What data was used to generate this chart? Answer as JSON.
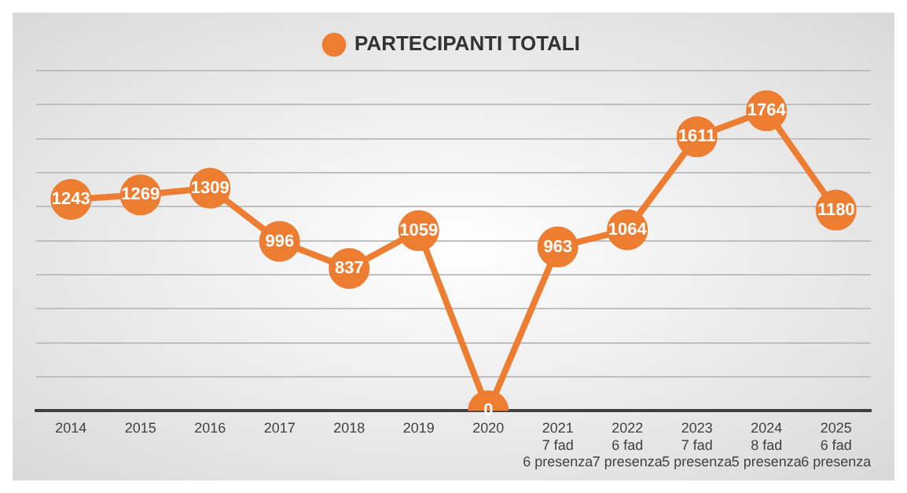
{
  "chart_data": {
    "type": "line",
    "categories": [
      "2014",
      "2015",
      "2016",
      "2017",
      "2018",
      "2019",
      "2020",
      "2021\n7 fad\n6 presenza",
      "2022\n6 fad\n7 presenza",
      "2023\n7 fad\n5 presenza",
      "2024\n8 fad\n5 presenza",
      "2025\n6 fad\n6 presenza"
    ],
    "series": [
      {
        "name": "PARTECIPANTI TOTALI",
        "color": "#ed7d31",
        "values": [
          1243,
          1269,
          1309,
          996,
          837,
          1059,
          0,
          963,
          1064,
          1611,
          1764,
          1180
        ]
      }
    ],
    "ylim": [
      0,
      2000
    ],
    "yticks": [
      {
        "value": 0,
        "label": null
      },
      {
        "value": 200,
        "label": null
      },
      {
        "value": 400,
        "label": null
      },
      {
        "value": 600,
        "label": null
      },
      {
        "value": 800,
        "label": null
      },
      {
        "value": 1000,
        "label": null
      },
      {
        "value": 1200,
        "label": null
      },
      {
        "value": 1400,
        "label": null
      },
      {
        "value": 1600,
        "label": null
      },
      {
        "value": 1800,
        "label": null
      },
      {
        "value": 2000,
        "label": null
      }
    ],
    "grid": "y",
    "legend": "top",
    "tick_labels": "x",
    "marker": "circle",
    "line_style": "solid",
    "data_labels": true
  }
}
